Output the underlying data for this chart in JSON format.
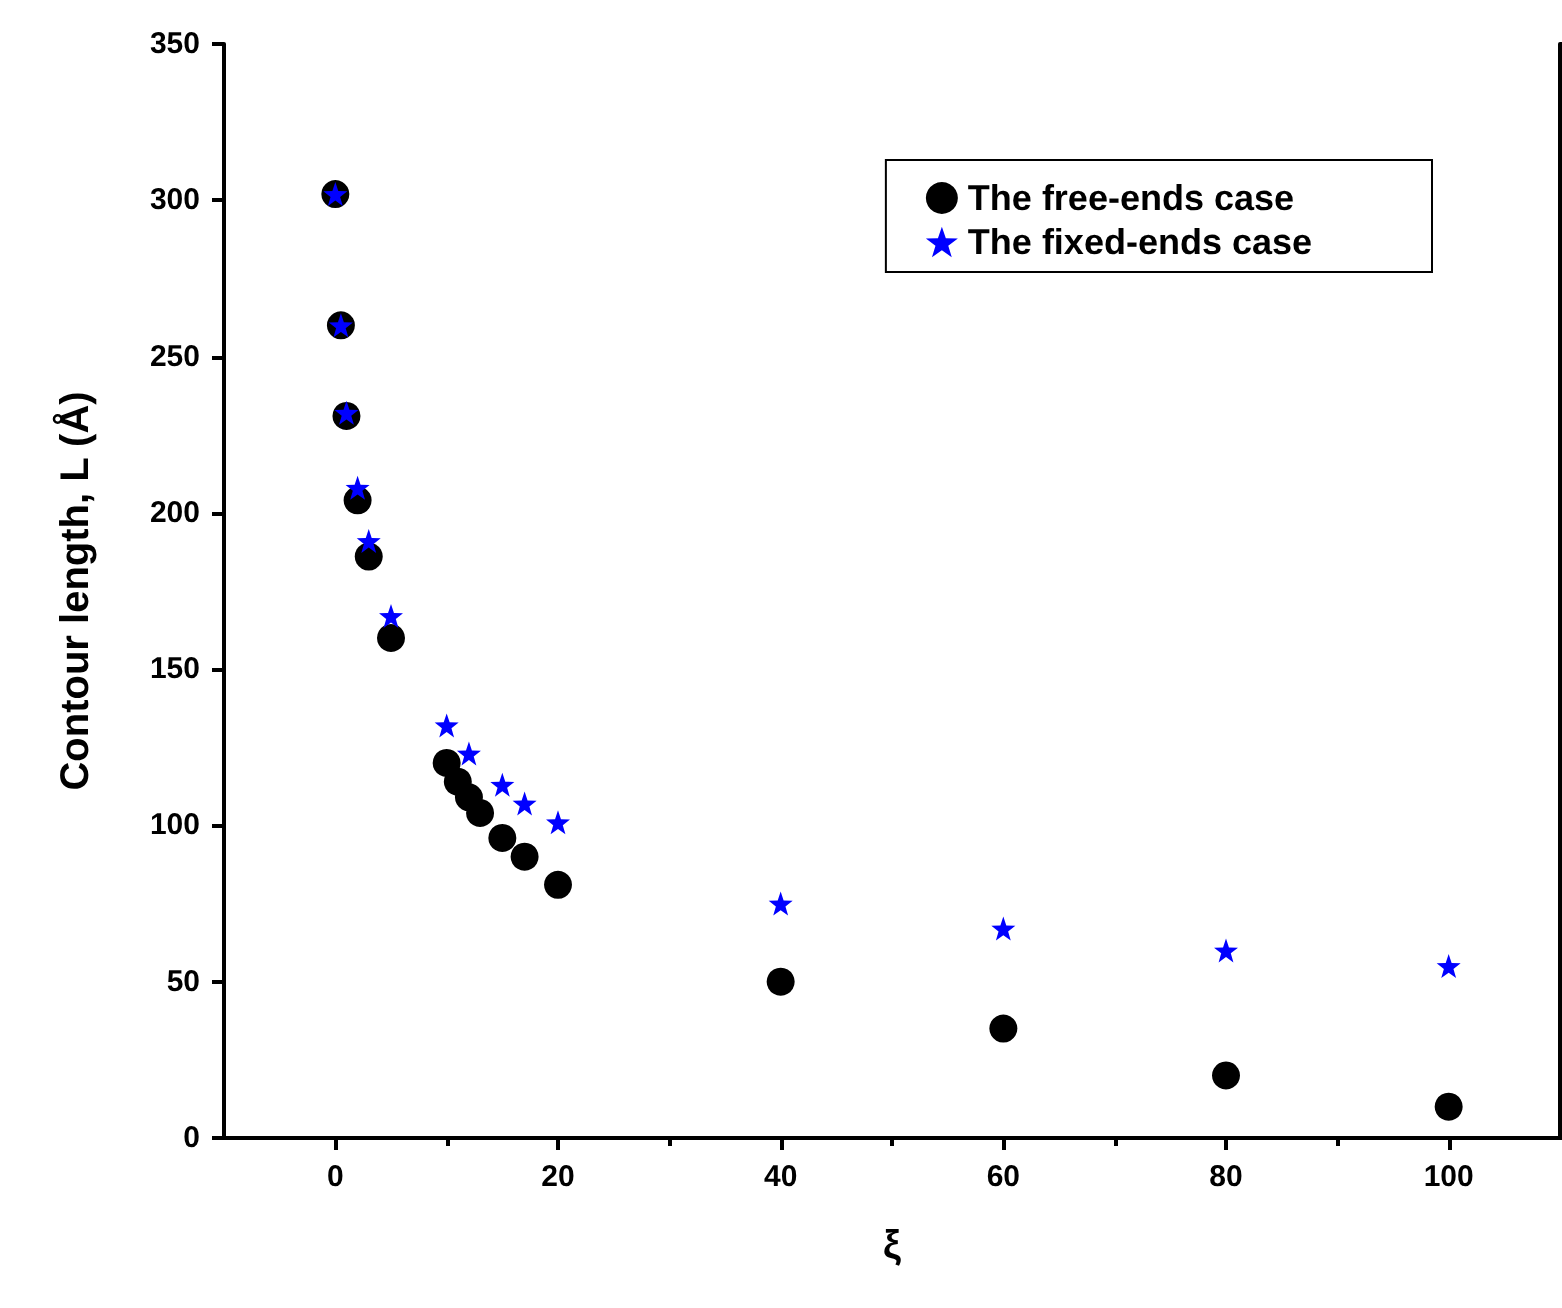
{
  "chart_data": {
    "type": "scatter",
    "xlabel": "ξ",
    "ylabel": "Contour length, L (Å)",
    "xlim": [
      -10,
      110
    ],
    "xticks": [
      0,
      20,
      40,
      60,
      80,
      100
    ],
    "ylim": [
      0,
      350
    ],
    "yticks": [
      0,
      50,
      100,
      150,
      200,
      250,
      300,
      350
    ],
    "grid": false,
    "legend": "top right",
    "series": [
      {
        "name": "The free-ends case",
        "color": "#000000",
        "marker": "circle",
        "x": [
          0,
          0.5,
          1,
          2,
          3,
          5,
          10,
          11,
          12,
          13,
          15,
          17,
          20,
          40,
          60,
          80,
          100
        ],
        "values": [
          302,
          260,
          231,
          204,
          186,
          160,
          120,
          114,
          109,
          104,
          96,
          90,
          81,
          50,
          35,
          20,
          10
        ]
      },
      {
        "name": "The fixed-ends case",
        "color": "#0000ff",
        "marker": "star",
        "x": [
          0,
          0.5,
          1,
          2,
          3,
          5,
          10,
          12,
          15,
          17,
          20,
          40,
          60,
          80,
          100
        ],
        "values": [
          302,
          260,
          232,
          208,
          191,
          167,
          132,
          123,
          113,
          107,
          101,
          75,
          67,
          60,
          55
        ]
      }
    ]
  }
}
